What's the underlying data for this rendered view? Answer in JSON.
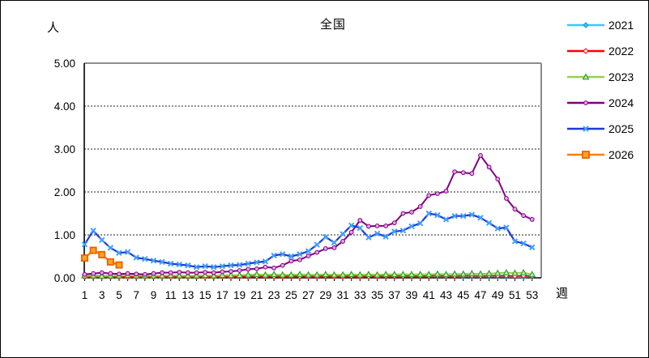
{
  "chart_data": {
    "type": "line",
    "title": "全国",
    "ylabel": "人",
    "xlabel": "週",
    "ylim": [
      0,
      5
    ],
    "y_ticks": [
      "0.00",
      "1.00",
      "2.00",
      "3.00",
      "4.00",
      "5.00"
    ],
    "x_tick_labels": [
      1,
      3,
      5,
      7,
      9,
      11,
      13,
      15,
      17,
      19,
      21,
      23,
      25,
      27,
      29,
      31,
      33,
      35,
      37,
      39,
      41,
      43,
      45,
      47,
      49,
      51,
      53
    ],
    "x_range": [
      1,
      53
    ],
    "grid": "horizontal-dashed",
    "legend_position": "right",
    "series": [
      {
        "name": "2021",
        "color": "#33CCFF",
        "marker": "diamond",
        "marker_color": "#0099DD",
        "marker_fill": "#33CCFF",
        "values": [
          0.06,
          0.06,
          0.05,
          0.05,
          0.05,
          0.05,
          0.05,
          0.05,
          0.04,
          0.05,
          0.05,
          0.05,
          0.04,
          0.05,
          0.04,
          0.05,
          0.05,
          0.05,
          0.05,
          0.05,
          0.06,
          0.05,
          0.06,
          0.05,
          0.05,
          0.06,
          0.05,
          0.06,
          0.06,
          0.05,
          0.06,
          0.06,
          0.05,
          0.06,
          0.05,
          0.05,
          0.05,
          0.05,
          0.04,
          0.04,
          0.04,
          0.04,
          0.03,
          0.04,
          0.03,
          0.03,
          0.03,
          0.03,
          0.03,
          0.03,
          0.02,
          0.02,
          0.03
        ]
      },
      {
        "name": "2022",
        "color": "#FF0000",
        "marker": "open-diamond",
        "marker_color": "#FF0000",
        "marker_fill": "#FFFFFF",
        "values": [
          0.02,
          0.02,
          0.02,
          0.02,
          0.02,
          0.02,
          0.02,
          0.02,
          0.02,
          0.02,
          0.02,
          0.02,
          0.02,
          0.02,
          0.02,
          0.02,
          0.03,
          0.02,
          0.03,
          0.03,
          0.03,
          0.03,
          0.03,
          0.03,
          0.04,
          0.03,
          0.03,
          0.03,
          0.04,
          0.03,
          0.03,
          0.04,
          0.03,
          0.03,
          0.03,
          0.04,
          0.04,
          0.04,
          0.04,
          0.04,
          0.04,
          0.05,
          0.04,
          0.04,
          0.05,
          0.05,
          0.04,
          0.05,
          0.05,
          0.05,
          0.04,
          0.05,
          0.04
        ]
      },
      {
        "name": "2023",
        "color": "#92D050",
        "marker": "triangle",
        "marker_color": "#2E9E2E",
        "marker_fill": "#CDEB9E",
        "values": [
          0.05,
          0.05,
          0.04,
          0.05,
          0.05,
          0.06,
          0.05,
          0.05,
          0.05,
          0.05,
          0.06,
          0.05,
          0.05,
          0.05,
          0.06,
          0.05,
          0.06,
          0.06,
          0.06,
          0.07,
          0.08,
          0.07,
          0.08,
          0.07,
          0.07,
          0.08,
          0.07,
          0.07,
          0.08,
          0.07,
          0.07,
          0.08,
          0.07,
          0.08,
          0.07,
          0.08,
          0.08,
          0.08,
          0.08,
          0.08,
          0.08,
          0.09,
          0.08,
          0.09,
          0.09,
          0.1,
          0.09,
          0.1,
          0.11,
          0.12,
          0.11,
          0.12,
          0.08
        ]
      },
      {
        "name": "2024",
        "color": "#800080",
        "marker": "circle",
        "marker_color": "#800080",
        "marker_fill": "#E8A0E8",
        "values": [
          0.08,
          0.1,
          0.12,
          0.1,
          0.09,
          0.1,
          0.09,
          0.08,
          0.1,
          0.12,
          0.12,
          0.13,
          0.12,
          0.12,
          0.13,
          0.12,
          0.14,
          0.15,
          0.17,
          0.2,
          0.21,
          0.25,
          0.23,
          0.29,
          0.39,
          0.42,
          0.51,
          0.59,
          0.68,
          0.7,
          0.85,
          1.06,
          1.34,
          1.2,
          1.21,
          1.21,
          1.28,
          1.5,
          1.53,
          1.66,
          1.92,
          1.96,
          2.02,
          2.47,
          2.45,
          2.43,
          2.85,
          2.58,
          2.3,
          1.85,
          1.6,
          1.45,
          1.36
        ]
      },
      {
        "name": "2025",
        "color": "#2038D8",
        "marker": "x",
        "marker_color": "#3FA0FF",
        "marker_fill": "#3FA0FF",
        "values": [
          0.78,
          1.1,
          0.88,
          0.7,
          0.58,
          0.6,
          0.47,
          0.44,
          0.4,
          0.37,
          0.33,
          0.31,
          0.29,
          0.25,
          0.27,
          0.25,
          0.27,
          0.29,
          0.3,
          0.33,
          0.36,
          0.38,
          0.52,
          0.55,
          0.5,
          0.55,
          0.62,
          0.77,
          0.95,
          0.82,
          1.02,
          1.22,
          1.16,
          0.94,
          1.03,
          0.96,
          1.08,
          1.1,
          1.2,
          1.27,
          1.5,
          1.46,
          1.36,
          1.44,
          1.44,
          1.47,
          1.4,
          1.28,
          1.15,
          1.17,
          0.85,
          0.8,
          0.71
        ]
      },
      {
        "name": "2026",
        "color": "#FF7F00",
        "marker": "square",
        "marker_color": "#F06000",
        "marker_fill": "#FFA226",
        "values": [
          0.46,
          0.64,
          0.54,
          0.37,
          0.3
        ]
      }
    ]
  }
}
